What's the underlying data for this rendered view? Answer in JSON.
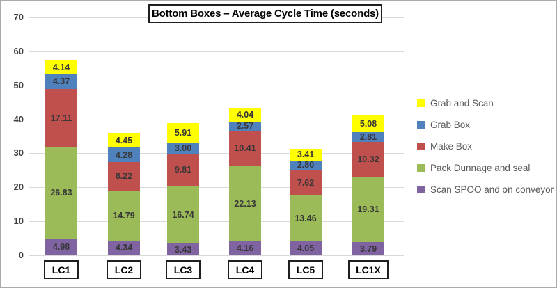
{
  "chart_data": {
    "type": "bar",
    "stacked": true,
    "title": "Bottom Boxes – Average Cycle Time (seconds)",
    "categories": [
      "LC1",
      "LC2",
      "LC3",
      "LC4",
      "LC5",
      "LC1X"
    ],
    "series": [
      {
        "name": "Scan SPOO and on conveyor",
        "color": "#8064A2",
        "values": [
          4.98,
          4.34,
          3.43,
          4.16,
          4.05,
          3.79
        ]
      },
      {
        "name": "Pack Dunnage and seal",
        "color": "#9BBB59",
        "values": [
          26.83,
          14.79,
          16.74,
          22.13,
          13.46,
          19.31
        ]
      },
      {
        "name": "Make Box",
        "color": "#C0504D",
        "values": [
          17.11,
          8.22,
          9.81,
          10.41,
          7.62,
          10.32
        ]
      },
      {
        "name": "Grab Box",
        "color": "#4F81BD",
        "values": [
          4.37,
          4.28,
          3.0,
          2.57,
          2.8,
          2.81
        ]
      },
      {
        "name": "Grab and Scan",
        "color": "#FFFF00",
        "values": [
          4.14,
          4.45,
          5.91,
          4.04,
          3.41,
          5.08
        ]
      }
    ],
    "legend": [
      "Grab and Scan",
      "Grab Box",
      "Make Box",
      "Pack Dunnage and seal",
      "Scan SPOO and on conveyor"
    ],
    "legend_position": "right",
    "ylim": [
      0,
      70
    ],
    "yticks": [
      0,
      10,
      20,
      30,
      40,
      50,
      60,
      70
    ],
    "grid": true,
    "xlabel": "",
    "ylabel": "",
    "value_label_decimals": 2
  }
}
